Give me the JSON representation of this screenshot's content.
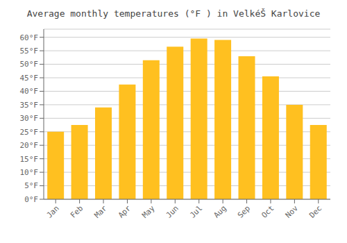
{
  "chart_data": {
    "type": "bar",
    "title": "Average monthly temperatures (°F ) in VelkéŠ Karlovice",
    "categories": [
      "Jan",
      "Feb",
      "Mar",
      "Apr",
      "May",
      "Jun",
      "Jul",
      "Aug",
      "Sep",
      "Oct",
      "Nov",
      "Dec"
    ],
    "values": [
      25,
      27.5,
      34,
      42.5,
      51.5,
      56.5,
      59.5,
      59,
      53,
      45.5,
      35,
      27.5
    ],
    "color": "#FFC020",
    "ylim": [
      0,
      63
    ],
    "yticks": [
      {
        "value": 0,
        "label": "0°F"
      },
      {
        "value": 5,
        "label": "5°F"
      },
      {
        "value": 10,
        "label": "10°F"
      },
      {
        "value": 15,
        "label": "15°F"
      },
      {
        "value": 20,
        "label": "20°F"
      },
      {
        "value": 25,
        "label": "25°F"
      },
      {
        "value": 30,
        "label": "30°F"
      },
      {
        "value": 35,
        "label": "35°F"
      },
      {
        "value": 40,
        "label": "40°F"
      },
      {
        "value": 45,
        "label": "45°F"
      },
      {
        "value": 50,
        "label": "50°F"
      },
      {
        "value": 55,
        "label": "55°F"
      },
      {
        "value": 60,
        "label": "60°F"
      }
    ],
    "grid": true
  }
}
